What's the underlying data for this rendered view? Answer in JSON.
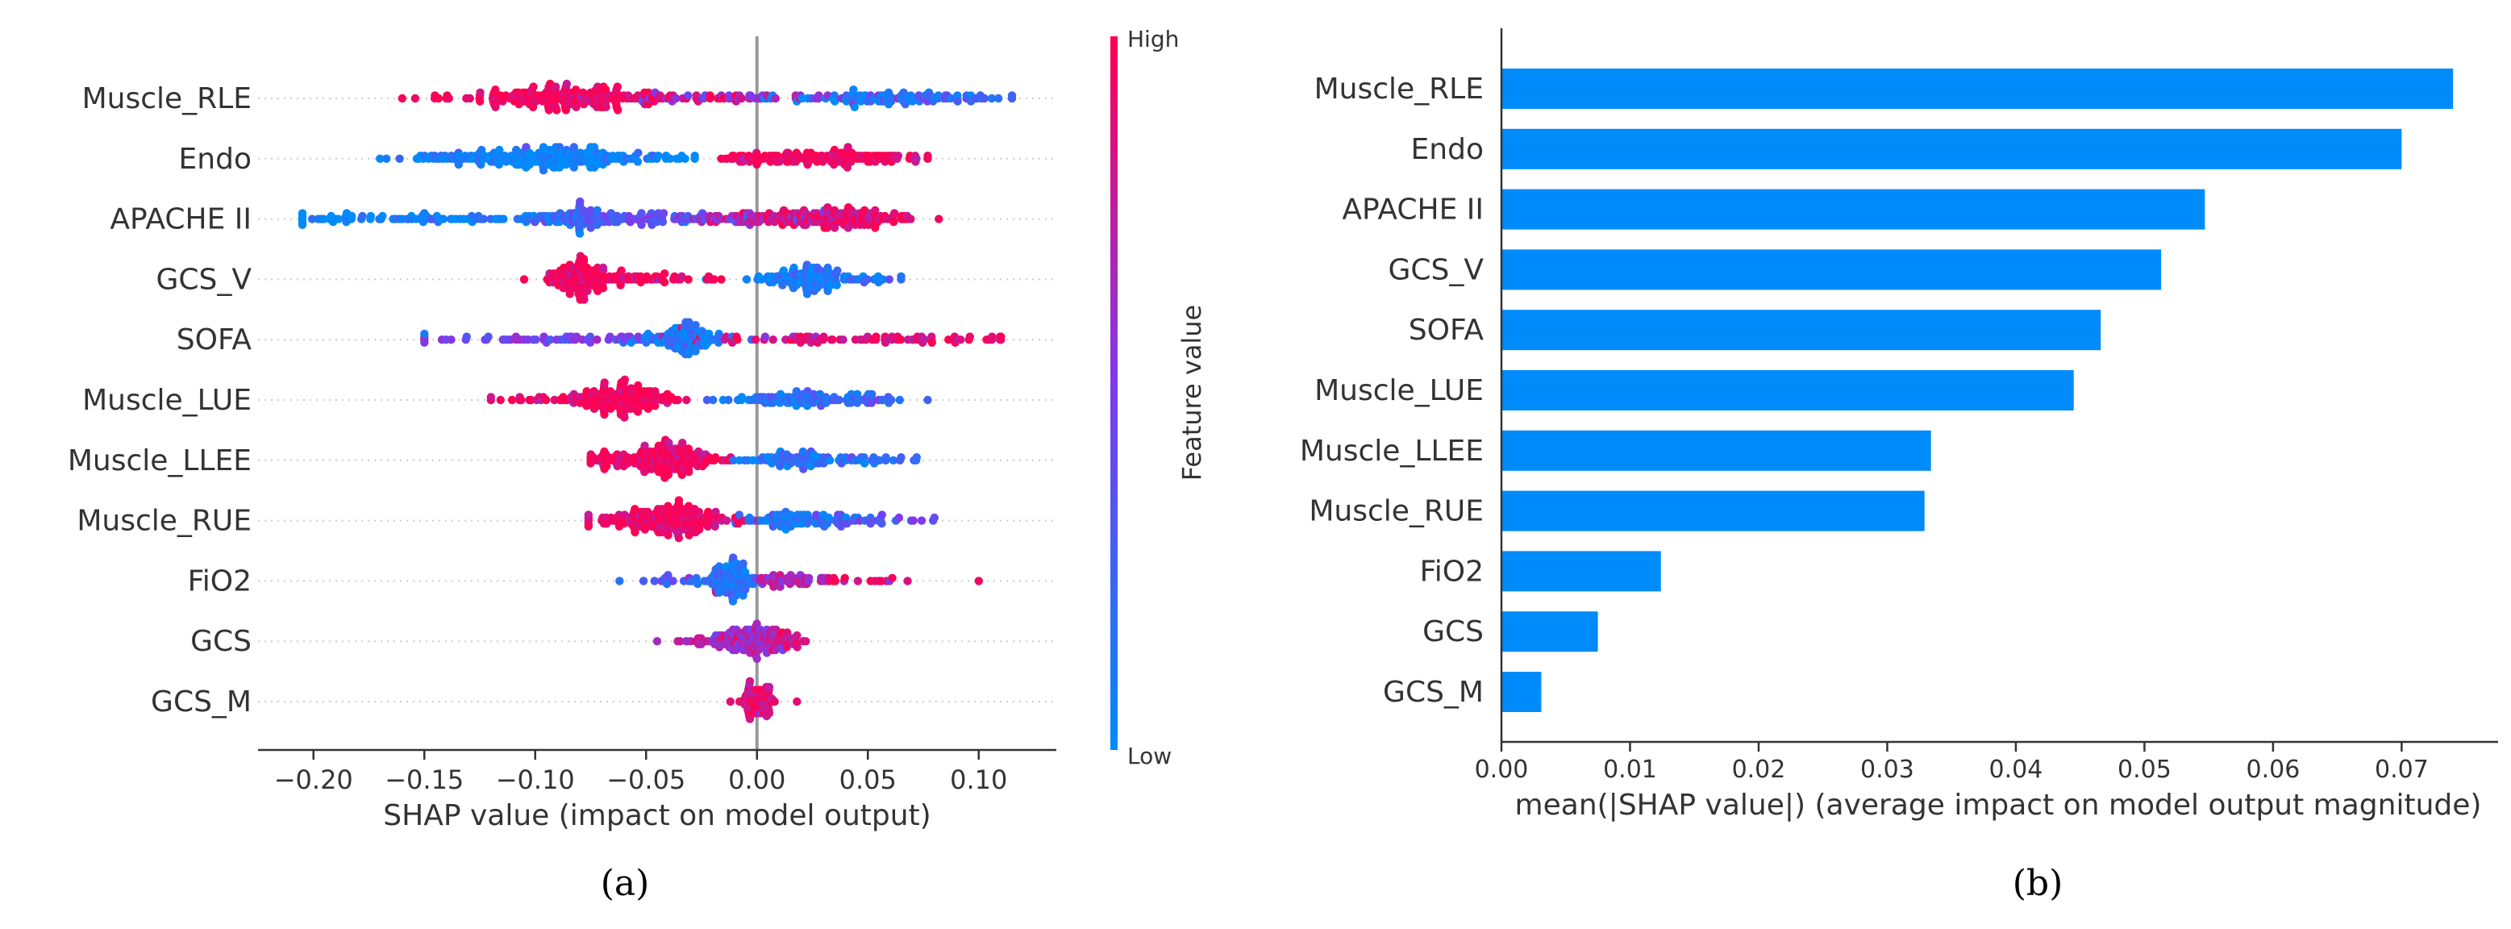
{
  "chart_data": [
    {
      "type": "scatter",
      "subtype": "shap-beeswarm",
      "panel_label": "(a)",
      "features": [
        "Muscle_RLE",
        "Endo",
        "APACHE II",
        "GCS_V",
        "SOFA",
        "Muscle_LUE",
        "Muscle_LLEE",
        "Muscle_RUE",
        "FiO2",
        "GCS",
        "GCS_M"
      ],
      "xlabel": "SHAP value (impact on model output)",
      "xlim": [
        -0.225,
        0.135
      ],
      "xticks": [
        -0.2,
        -0.15,
        -0.1,
        -0.05,
        0.0,
        0.05,
        0.1
      ],
      "xtick_labels": [
        "−0.20",
        "−0.15",
        "−0.10",
        "−0.05",
        "0.00",
        "0.05",
        "0.10"
      ],
      "colorbar": {
        "label": "Feature value",
        "high": "High",
        "low": "Low",
        "color_low": "#008bfb",
        "color_mid": "#7b3cf0",
        "color_high": "#ff0052"
      },
      "distributions": [
        {
          "feature": "Muscle_RLE",
          "min": -0.16,
          "max": 0.115,
          "clusters": [
            [
              -0.092,
              0.022,
              170,
              0.98
            ],
            [
              -0.06,
              0.03,
              60,
              0.95
            ],
            [
              0.0,
              0.035,
              50,
              0.6
            ],
            [
              0.055,
              0.02,
              70,
              0.1
            ],
            [
              0.085,
              0.02,
              30,
              0.25
            ]
          ]
        },
        {
          "feature": "Endo",
          "min": -0.17,
          "max": 0.077,
          "clusters": [
            [
              -0.092,
              0.018,
              160,
              0.02
            ],
            [
              -0.13,
              0.02,
              50,
              0.05
            ],
            [
              -0.06,
              0.015,
              40,
              0.05
            ],
            [
              0.025,
              0.02,
              130,
              0.98
            ],
            [
              0.06,
              0.01,
              20,
              0.95
            ]
          ]
        },
        {
          "feature": "APACHE II",
          "min": -0.205,
          "max": 0.082,
          "clusters": [
            [
              -0.19,
              0.012,
              20,
              0.02
            ],
            [
              -0.14,
              0.03,
              60,
              0.05
            ],
            [
              -0.08,
              0.012,
              90,
              0.25
            ],
            [
              -0.04,
              0.02,
              60,
              0.4
            ],
            [
              0.01,
              0.02,
              80,
              0.75
            ],
            [
              0.038,
              0.015,
              120,
              0.95
            ]
          ]
        },
        {
          "feature": "GCS_V",
          "min": -0.105,
          "max": 0.065,
          "clusters": [
            [
              -0.08,
              0.007,
              120,
              0.98
            ],
            [
              -0.055,
              0.02,
              60,
              0.95
            ],
            [
              0.024,
              0.012,
              110,
              0.1
            ],
            [
              0.045,
              0.012,
              20,
              0.15
            ]
          ]
        },
        {
          "feature": "SOFA",
          "min": -0.15,
          "max": 0.11,
          "clusters": [
            [
              -0.034,
              0.01,
              120,
              0.1
            ],
            [
              -0.09,
              0.04,
              60,
              0.5
            ],
            [
              0.04,
              0.04,
              70,
              0.88
            ],
            [
              0.09,
              0.01,
              10,
              0.98
            ]
          ]
        },
        {
          "feature": "Muscle_LUE",
          "min": -0.12,
          "max": 0.077,
          "clusters": [
            [
              -0.06,
              0.012,
              160,
              0.98
            ],
            [
              -0.095,
              0.015,
              30,
              0.95
            ],
            [
              0.01,
              0.012,
              60,
              0.12
            ],
            [
              0.04,
              0.015,
              50,
              0.25
            ]
          ]
        },
        {
          "feature": "Muscle_LLEE",
          "min": -0.075,
          "max": 0.072,
          "clusters": [
            [
              -0.04,
              0.012,
              180,
              0.97
            ],
            [
              -0.062,
              0.008,
              30,
              0.95
            ],
            [
              0.02,
              0.012,
              80,
              0.15
            ],
            [
              0.05,
              0.01,
              20,
              0.2
            ]
          ]
        },
        {
          "feature": "Muscle_RUE",
          "min": -0.076,
          "max": 0.08,
          "clusters": [
            [
              -0.037,
              0.012,
              180,
              0.97
            ],
            [
              -0.06,
              0.01,
              30,
              0.95
            ],
            [
              0.015,
              0.012,
              80,
              0.15
            ],
            [
              0.048,
              0.012,
              30,
              0.4
            ]
          ]
        },
        {
          "feature": "FiO2",
          "min": -0.062,
          "max": 0.1,
          "clusters": [
            [
              -0.012,
              0.005,
              110,
              0.15
            ],
            [
              -0.03,
              0.01,
              20,
              0.3
            ],
            [
              0.015,
              0.012,
              50,
              0.7
            ],
            [
              0.04,
              0.015,
              15,
              0.95
            ]
          ]
        },
        {
          "feature": "GCS",
          "min": -0.045,
          "max": 0.022,
          "clusters": [
            [
              -0.003,
              0.008,
              130,
              0.65
            ],
            [
              -0.025,
              0.008,
              20,
              0.8
            ],
            [
              0.012,
              0.004,
              25,
              0.85
            ]
          ]
        },
        {
          "feature": "GCS_M",
          "min": -0.012,
          "max": 0.018,
          "clusters": [
            [
              0.0,
              0.004,
              80,
              0.9
            ]
          ]
        }
      ]
    },
    {
      "type": "bar",
      "orientation": "horizontal",
      "panel_label": "(b)",
      "categories": [
        "Muscle_RLE",
        "Endo",
        "APACHE II",
        "GCS_V",
        "SOFA",
        "Muscle_LUE",
        "Muscle_LLEE",
        "Muscle_RUE",
        "FiO2",
        "GCS",
        "GCS_M"
      ],
      "values": [
        0.074,
        0.07,
        0.0547,
        0.0513,
        0.0466,
        0.0445,
        0.0334,
        0.0329,
        0.0124,
        0.0075,
        0.0031
      ],
      "xlabel": "mean(|SHAP value|) (average impact on model output magnitude)",
      "xlim": [
        0,
        0.0775
      ],
      "xticks": [
        0.0,
        0.01,
        0.02,
        0.03,
        0.04,
        0.05,
        0.06,
        0.07
      ],
      "xtick_labels": [
        "0.00",
        "0.01",
        "0.02",
        "0.03",
        "0.04",
        "0.05",
        "0.06",
        "0.07"
      ],
      "bar_color": "#008bfb"
    }
  ]
}
